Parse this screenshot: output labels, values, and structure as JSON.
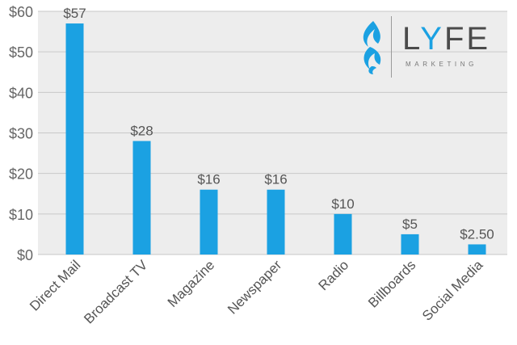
{
  "chart_data": {
    "type": "bar",
    "title": "",
    "xlabel": "",
    "ylabel": "",
    "categories": [
      "Direct Mail",
      "Broadcast TV",
      "Magazine",
      "Newspaper",
      "Radio",
      "Billboards",
      "Social Media"
    ],
    "values": [
      57,
      28,
      16,
      16,
      10,
      5,
      2.5
    ],
    "value_labels": [
      "$57",
      "$28",
      "$16",
      "$16",
      "$10",
      "$5",
      "$2.50"
    ],
    "ylim": [
      0,
      60
    ],
    "yticks": [
      0,
      10,
      20,
      30,
      40,
      50,
      60
    ],
    "ytick_labels": [
      "$0",
      "$10",
      "$20",
      "$30",
      "$40",
      "$50",
      "$60"
    ],
    "grid": true,
    "bar_color": "#1BA1E2",
    "background_color": "#EDEDED",
    "grid_color": "#C8C8C8"
  },
  "logo": {
    "wordmark_left": "L",
    "wordmark_accent": "Y",
    "wordmark_right": "FE",
    "tagline": "MARKETING",
    "accent_color": "#1BA1E2",
    "text_color": "#4B4B4B"
  }
}
